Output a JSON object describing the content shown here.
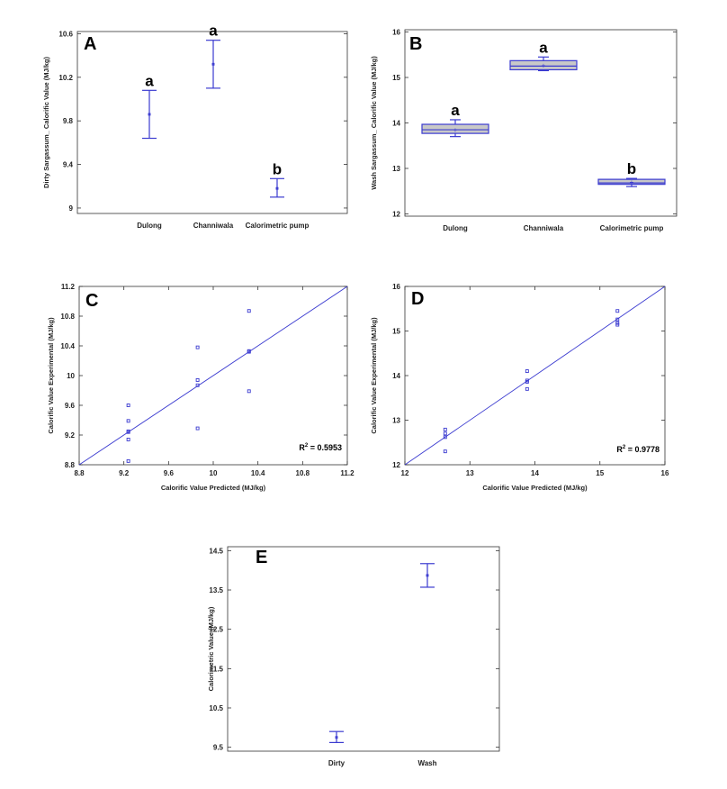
{
  "colors": {
    "mark": "#3b3bd0",
    "box_fill": "#c8c8c8",
    "frame": "#333333"
  },
  "chart_data": [
    {
      "id": "A",
      "type": "interval",
      "panel_label": "A",
      "ylabel": "Dirty Sargassum_ Calorific Value (MJ/kg)",
      "xlabel": "",
      "categories": [
        "Dulong",
        "Channiwala",
        "Calorimetric pump"
      ],
      "ylim": [
        8.95,
        10.62
      ],
      "yticks": [
        9,
        9.4,
        9.8,
        10.2,
        10.6
      ],
      "ytick_labels": [
        "9",
        "9.4",
        "9.8",
        "10.2",
        "10.6"
      ],
      "intervals": [
        {
          "center": 9.86,
          "low": 9.64,
          "high": 10.08
        },
        {
          "center": 10.32,
          "low": 10.1,
          "high": 10.54
        },
        {
          "center": 9.18,
          "low": 9.1,
          "high": 9.27
        }
      ],
      "group_letters": [
        "a",
        "a",
        "b"
      ]
    },
    {
      "id": "B",
      "type": "box",
      "panel_label": "B",
      "ylabel": "Wash Sargassum_ Calorific Value (MJ/kg)",
      "xlabel": "",
      "categories": [
        "Dulong",
        "Channiwala",
        "Calorimetric pump"
      ],
      "ylim": [
        11.95,
        16.05
      ],
      "yticks": [
        12,
        13,
        14,
        15,
        16
      ],
      "ytick_labels": [
        "12",
        "13",
        "14",
        "15",
        "16"
      ],
      "boxes": [
        {
          "min": 13.7,
          "q1": 13.77,
          "median": 13.85,
          "mean": 13.85,
          "q3": 13.97,
          "max": 14.07
        },
        {
          "min": 15.15,
          "q1": 15.17,
          "median": 15.25,
          "mean": 15.27,
          "q3": 15.37,
          "max": 15.45
        },
        {
          "min": 12.6,
          "q1": 12.65,
          "median": 12.68,
          "mean": 12.7,
          "q3": 12.76,
          "max": 12.78
        }
      ],
      "group_letters": [
        "a",
        "a",
        "b"
      ]
    },
    {
      "id": "C",
      "type": "scatter",
      "panel_label": "C",
      "xlabel": "Calorific Value Predicted (MJ/kg)",
      "ylabel": "Calorific Value Experimental (MJ/kg)",
      "xlim": [
        8.8,
        11.2
      ],
      "ylim": [
        8.8,
        11.2
      ],
      "xticks": [
        8.8,
        9.2,
        9.6,
        10,
        10.4,
        10.8,
        11.2
      ],
      "xtick_labels": [
        "8.8",
        "9.2",
        "9.6",
        "10",
        "10.4",
        "10.8",
        "11.2"
      ],
      "yticks": [
        8.8,
        9.2,
        9.6,
        10,
        10.4,
        10.8,
        11.2
      ],
      "ytick_labels": [
        "8.8",
        "9.2",
        "9.6",
        "10",
        "10.4",
        "10.8",
        "11.2"
      ],
      "points": [
        {
          "x": 9.24,
          "y": 8.85
        },
        {
          "x": 9.24,
          "y": 9.14
        },
        {
          "x": 9.24,
          "y": 9.24
        },
        {
          "x": 9.24,
          "y": 9.25
        },
        {
          "x": 9.24,
          "y": 9.39
        },
        {
          "x": 9.24,
          "y": 9.6
        },
        {
          "x": 9.86,
          "y": 9.29
        },
        {
          "x": 9.86,
          "y": 9.87
        },
        {
          "x": 9.86,
          "y": 9.94
        },
        {
          "x": 9.86,
          "y": 10.38
        },
        {
          "x": 10.32,
          "y": 9.79
        },
        {
          "x": 10.32,
          "y": 10.32
        },
        {
          "x": 10.32,
          "y": 10.33
        },
        {
          "x": 10.32,
          "y": 10.87
        }
      ],
      "fit_line": {
        "x": [
          8.8,
          11.2
        ],
        "y": [
          8.8,
          11.2
        ]
      },
      "annotation": "R² = 0.5953"
    },
    {
      "id": "D",
      "type": "scatter",
      "panel_label": "D",
      "xlabel": "Calorific Value Predicted (MJ/kg)",
      "ylabel": "Calorific Value Experimental (MJ/kg)",
      "xlim": [
        12,
        16
      ],
      "ylim": [
        12,
        16
      ],
      "xticks": [
        12,
        13,
        14,
        15,
        16
      ],
      "xtick_labels": [
        "12",
        "13",
        "14",
        "15",
        "16"
      ],
      "yticks": [
        12,
        13,
        14,
        15,
        16
      ],
      "ytick_labels": [
        "12",
        "13",
        "14",
        "15",
        "16"
      ],
      "points": [
        {
          "x": 12.62,
          "y": 12.3
        },
        {
          "x": 12.62,
          "y": 12.62
        },
        {
          "x": 12.62,
          "y": 12.7
        },
        {
          "x": 12.62,
          "y": 12.79
        },
        {
          "x": 13.88,
          "y": 13.7
        },
        {
          "x": 13.88,
          "y": 13.86
        },
        {
          "x": 13.88,
          "y": 13.89
        },
        {
          "x": 13.88,
          "y": 14.1
        },
        {
          "x": 15.27,
          "y": 15.14
        },
        {
          "x": 15.27,
          "y": 15.18
        },
        {
          "x": 15.27,
          "y": 15.26
        },
        {
          "x": 15.27,
          "y": 15.45
        }
      ],
      "fit_line": {
        "x": [
          12,
          16
        ],
        "y": [
          12,
          16
        ]
      },
      "annotation": "R² = 0.9778"
    },
    {
      "id": "E",
      "type": "interval",
      "panel_label": "E",
      "ylabel": "Calorimetric Value (MJ/kg)",
      "xlabel": "",
      "categories": [
        "Dirty",
        "Wash"
      ],
      "ylim": [
        9.4,
        14.6
      ],
      "yticks": [
        9.5,
        10.5,
        11.5,
        12.5,
        13.5,
        14.5
      ],
      "ytick_labels": [
        "9.5",
        "10.5",
        "11.5",
        "12.5",
        "13.5",
        "14.5"
      ],
      "intervals": [
        {
          "center": 9.75,
          "low": 9.62,
          "high": 9.9
        },
        {
          "center": 13.87,
          "low": 13.57,
          "high": 14.17
        }
      ],
      "group_letters": [
        "",
        ""
      ]
    }
  ]
}
